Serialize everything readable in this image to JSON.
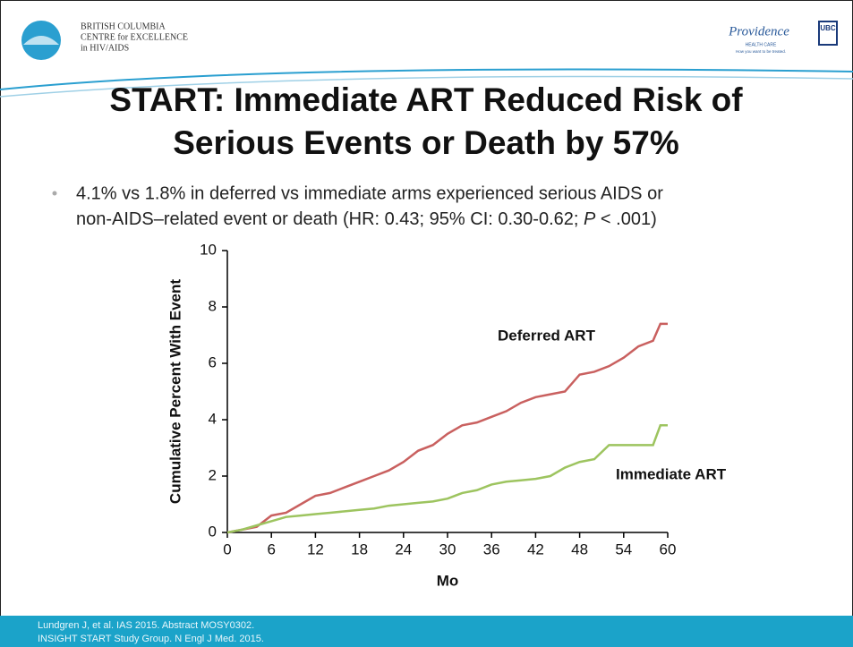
{
  "header": {
    "org": [
      "BRITISH COLUMBIA",
      "CENTRE for EXCELLENCE",
      "in HIV/AIDS"
    ],
    "partner": "Providence",
    "partner_sub": "HEALTH CARE",
    "partner_tag": "How you want to be treated.",
    "university": "UBC"
  },
  "title": [
    "START: Immediate ART Reduced Risk of",
    "Serious Events or Death by 57%"
  ],
  "bullet": {
    "line1": "4.1% vs 1.8% in deferred vs immediate arms experienced serious AIDS or",
    "line2": "non-AIDS–related event or death (HR: 0.43; 95% CI: 0.30-0.62; ",
    "line2_italic": "P",
    "line2_end": " < .001)"
  },
  "footer": [
    "Lundgren J, et al. IAS 2015. Abstract MOSY0302.",
    "INSIGHT START Study Group. N Engl J Med. 2015."
  ],
  "chart_data": {
    "type": "line",
    "xlabel": "Mo",
    "ylabel": "Cumulative Percent With Event",
    "x": [
      0,
      2,
      4,
      6,
      8,
      10,
      12,
      14,
      16,
      18,
      20,
      22,
      24,
      26,
      28,
      30,
      32,
      34,
      36,
      38,
      40,
      42,
      44,
      46,
      48,
      50,
      52,
      54,
      56,
      58,
      59,
      60
    ],
    "series": [
      {
        "name": "Deferred ART",
        "color": "#c9605f",
        "values": [
          0,
          0.1,
          0.2,
          0.6,
          0.7,
          1.0,
          1.3,
          1.4,
          1.6,
          1.8,
          2.0,
          2.2,
          2.5,
          2.9,
          3.1,
          3.5,
          3.8,
          3.9,
          4.1,
          4.3,
          4.6,
          4.8,
          4.9,
          5.0,
          5.6,
          5.7,
          5.9,
          6.2,
          6.6,
          6.8,
          7.4,
          7.4
        ]
      },
      {
        "name": "Immediate ART",
        "color": "#9dc45f",
        "values": [
          0,
          0.1,
          0.25,
          0.4,
          0.55,
          0.6,
          0.65,
          0.7,
          0.75,
          0.8,
          0.85,
          0.95,
          1.0,
          1.05,
          1.1,
          1.2,
          1.4,
          1.5,
          1.7,
          1.8,
          1.85,
          1.9,
          2.0,
          2.3,
          2.5,
          2.6,
          3.1,
          3.1,
          3.1,
          3.1,
          3.8,
          3.8
        ]
      }
    ],
    "xlim": [
      0,
      60
    ],
    "xticks": [
      0,
      6,
      12,
      18,
      24,
      30,
      36,
      42,
      48,
      54,
      60
    ],
    "ylim": [
      0,
      10
    ],
    "yticks": [
      0,
      2,
      4,
      6,
      8,
      10
    ],
    "grid": false
  }
}
